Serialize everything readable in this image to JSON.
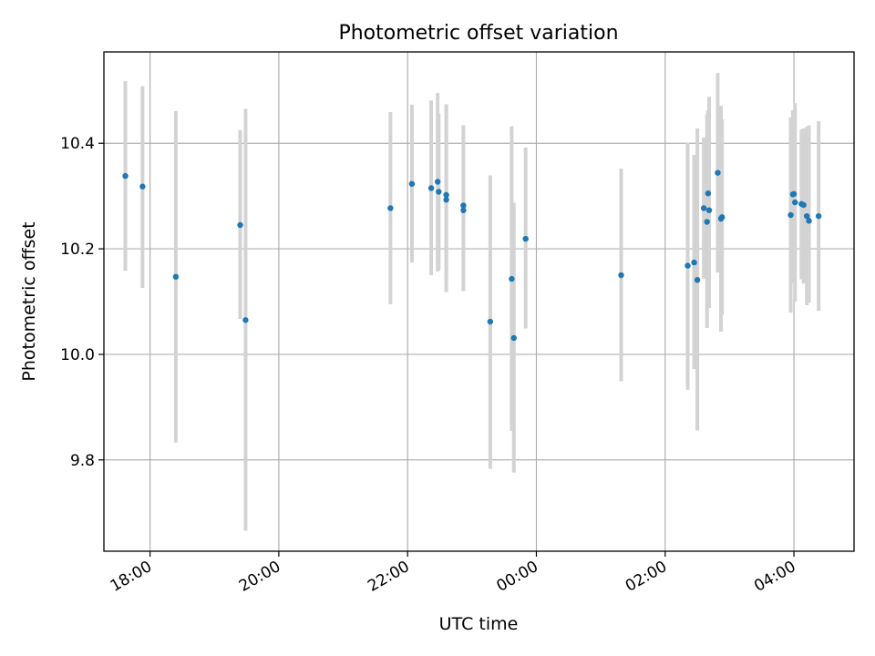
{
  "chart_data": {
    "type": "scatter",
    "title": "Photometric offset variation",
    "xlabel": "UTC time",
    "ylabel": "Photometric offset",
    "x_axis": {
      "kind": "time",
      "range": [
        "17:17",
        "04:56 +1d"
      ],
      "ticks": [
        "18:00",
        "20:00",
        "22:00",
        "00:00",
        "02:00",
        "04:00"
      ]
    },
    "y_axis": {
      "range": [
        9.627,
        10.573
      ],
      "ticks": [
        "9.8",
        "10.0",
        "10.2",
        "10.4"
      ]
    },
    "grid": true,
    "point_color": "#1f77b4",
    "errorbar_color": "#d3d3d3",
    "points": [
      {
        "t": "17:37",
        "y": 10.338,
        "lo": 10.158,
        "hi": 10.518
      },
      {
        "t": "17:53",
        "y": 10.318,
        "lo": 10.126,
        "hi": 10.508
      },
      {
        "t": "18:24",
        "y": 10.147,
        "lo": 9.833,
        "hi": 10.461
      },
      {
        "t": "19:24",
        "y": 10.245,
        "lo": 10.067,
        "hi": 10.425
      },
      {
        "t": "19:29",
        "y": 10.065,
        "lo": 9.666,
        "hi": 10.465
      },
      {
        "t": "21:44",
        "y": 10.277,
        "lo": 10.095,
        "hi": 10.459
      },
      {
        "t": "22:04",
        "y": 10.323,
        "lo": 10.174,
        "hi": 10.473
      },
      {
        "t": "22:22",
        "y": 10.315,
        "lo": 10.15,
        "hi": 10.481
      },
      {
        "t": "22:28",
        "y": 10.327,
        "lo": 10.157,
        "hi": 10.495
      },
      {
        "t": "22:29",
        "y": 10.308,
        "lo": 10.16,
        "hi": 10.456
      },
      {
        "t": "22:36",
        "y": 10.302,
        "lo": 10.13,
        "hi": 10.474
      },
      {
        "t": "22:36",
        "y": 10.293,
        "lo": 10.118,
        "hi": 10.468
      },
      {
        "t": "22:52",
        "y": 10.282,
        "lo": 10.12,
        "hi": 10.434
      },
      {
        "t": "22:52",
        "y": 10.273,
        "lo": 10.12,
        "hi": 10.434
      },
      {
        "t": "23:17",
        "y": 10.062,
        "lo": 9.783,
        "hi": 10.339
      },
      {
        "t": "23:37",
        "y": 10.143,
        "lo": 9.855,
        "hi": 10.432
      },
      {
        "t": "23:39",
        "y": 10.031,
        "lo": 9.776,
        "hi": 10.287
      },
      {
        "t": "23:50",
        "y": 10.219,
        "lo": 10.049,
        "hi": 10.392
      },
      {
        "t": "01:19",
        "y": 10.15,
        "lo": 9.949,
        "hi": 10.352
      },
      {
        "t": "02:21",
        "y": 10.168,
        "lo": 9.933,
        "hi": 10.401
      },
      {
        "t": "02:27",
        "y": 10.174,
        "lo": 9.972,
        "hi": 10.378
      },
      {
        "t": "02:30",
        "y": 10.141,
        "lo": 9.856,
        "hi": 10.428
      },
      {
        "t": "02:36",
        "y": 10.277,
        "lo": 10.143,
        "hi": 10.411
      },
      {
        "t": "02:39",
        "y": 10.251,
        "lo": 10.05,
        "hi": 10.455
      },
      {
        "t": "02:40",
        "y": 10.305,
        "lo": 10.148,
        "hi": 10.462
      },
      {
        "t": "02:41",
        "y": 10.273,
        "lo": 10.088,
        "hi": 10.488
      },
      {
        "t": "02:49",
        "y": 10.344,
        "lo": 10.155,
        "hi": 10.533
      },
      {
        "t": "02:52",
        "y": 10.257,
        "lo": 10.043,
        "hi": 10.471
      },
      {
        "t": "02:53",
        "y": 10.26,
        "lo": 10.075,
        "hi": 10.445
      },
      {
        "t": "03:57",
        "y": 10.264,
        "lo": 10.079,
        "hi": 10.449
      },
      {
        "t": "03:59",
        "y": 10.303,
        "lo": 10.135,
        "hi": 10.463
      },
      {
        "t": "04:00",
        "y": 10.304,
        "lo": 10.16,
        "hi": 10.452
      },
      {
        "t": "04:01",
        "y": 10.288,
        "lo": 10.1,
        "hi": 10.476
      },
      {
        "t": "04:07",
        "y": 10.285,
        "lo": 10.142,
        "hi": 10.426
      },
      {
        "t": "04:09",
        "y": 10.283,
        "lo": 10.134,
        "hi": 10.428
      },
      {
        "t": "04:12",
        "y": 10.262,
        "lo": 10.093,
        "hi": 10.431
      },
      {
        "t": "04:14",
        "y": 10.253,
        "lo": 10.098,
        "hi": 10.434
      },
      {
        "t": "04:23",
        "y": 10.262,
        "lo": 10.082,
        "hi": 10.442
      }
    ]
  }
}
